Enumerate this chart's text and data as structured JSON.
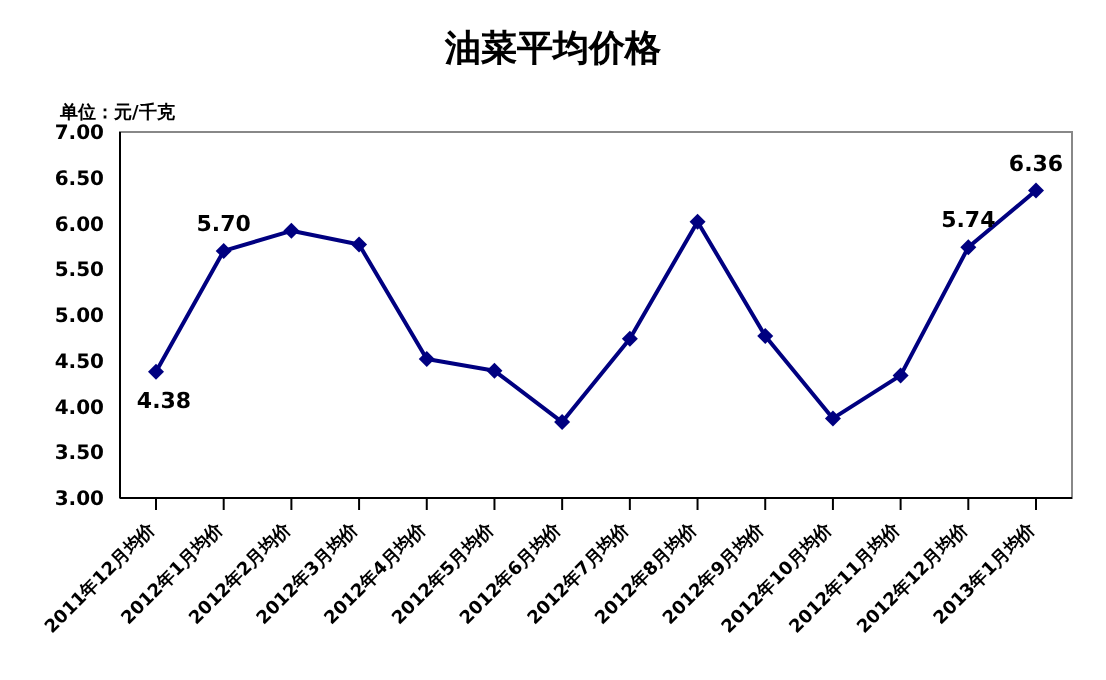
{
  "chart_data": {
    "type": "line",
    "title": "油菜平均价格",
    "annotations": [
      "单位：元/千克"
    ],
    "categories": [
      "2011年12月均价",
      "2012年1月均价",
      "2012年2月均价",
      "2012年3月均价",
      "2012年4月均价",
      "2012年5月均价",
      "2012年6月均价",
      "2012年7月均价",
      "2012年8月均价",
      "2012年9月均价",
      "2012年10月均价",
      "2012年11月均价",
      "2012年12月均价",
      "2013年1月均价"
    ],
    "series": [
      {
        "color": "#000080",
        "values": [
          4.38,
          5.7,
          5.92,
          5.77,
          4.52,
          4.39,
          3.83,
          4.74,
          6.02,
          4.77,
          3.87,
          4.34,
          5.74,
          6.36
        ],
        "value_labels": [
          "4.38",
          "5.70",
          null,
          null,
          null,
          null,
          null,
          null,
          null,
          null,
          null,
          null,
          "5.74",
          "6.36"
        ]
      }
    ],
    "ylim": [
      3,
      7
    ],
    "yticks": [
      {
        "value": 3,
        "label": "3.00"
      },
      {
        "value": 3.5,
        "label": "3.50"
      },
      {
        "value": 4,
        "label": "4.00"
      },
      {
        "value": 4.5,
        "label": "4.50"
      },
      {
        "value": 5,
        "label": "5.00"
      },
      {
        "value": 5.5,
        "label": "5.50"
      },
      {
        "value": 6,
        "label": "6.00"
      },
      {
        "value": 6.5,
        "label": "6.50"
      },
      {
        "value": 7,
        "label": "7.00"
      }
    ],
    "grid": false,
    "legend": false,
    "marker": "diamond",
    "line_style": "solid"
  }
}
